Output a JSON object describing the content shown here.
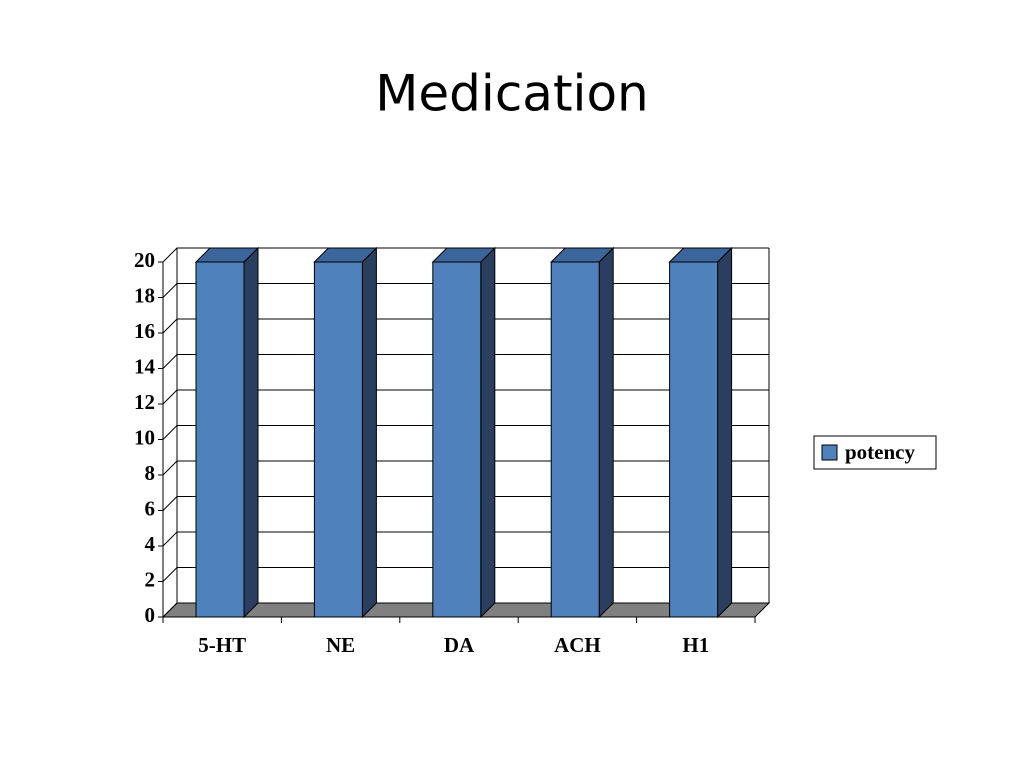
{
  "chart_data": {
    "type": "bar3d",
    "title": "Medication",
    "categories": [
      "5-HT",
      "NE",
      "DA",
      "ACH",
      "H1"
    ],
    "series": [
      {
        "name": "potency",
        "color": "#4f81bd",
        "values": [
          20,
          20,
          20,
          20,
          20
        ]
      }
    ],
    "ylim": [
      0,
      20
    ],
    "yticks": [
      0,
      2,
      4,
      6,
      8,
      10,
      12,
      14,
      16,
      18,
      20
    ],
    "grid": true,
    "legend": "right"
  }
}
